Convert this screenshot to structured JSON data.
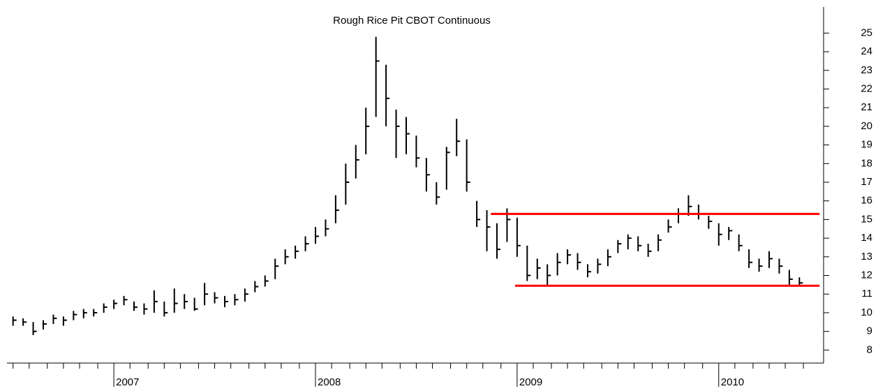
{
  "chart_data": {
    "type": "hlc",
    "title": "Rough Rice Pit CBOT Continuous",
    "color": "#000000",
    "x": [
      2006.5,
      2006.55,
      2006.6,
      2006.65,
      2006.7,
      2006.75,
      2006.8,
      2006.85,
      2006.9,
      2006.95,
      2007.0,
      2007.05,
      2007.1,
      2007.15,
      2007.2,
      2007.25,
      2007.3,
      2007.35,
      2007.4,
      2007.45,
      2007.5,
      2007.55,
      2007.6,
      2007.65,
      2007.7,
      2007.75,
      2007.8,
      2007.85,
      2007.9,
      2007.95,
      2008.0,
      2008.05,
      2008.1,
      2008.15,
      2008.2,
      2008.25,
      2008.3,
      2008.35,
      2008.4,
      2008.45,
      2008.5,
      2008.55,
      2008.6,
      2008.65,
      2008.7,
      2008.75,
      2008.8,
      2008.85,
      2008.9,
      2008.95,
      2009.0,
      2009.05,
      2009.1,
      2009.15,
      2009.2,
      2009.25,
      2009.3,
      2009.35,
      2009.4,
      2009.45,
      2009.5,
      2009.55,
      2009.6,
      2009.65,
      2009.7,
      2009.75,
      2009.8,
      2009.85,
      2009.9,
      2009.95,
      2010.0,
      2010.05,
      2010.1,
      2010.15,
      2010.2,
      2010.25,
      2010.3,
      2010.35,
      2010.4
    ],
    "high": [
      9.8,
      9.7,
      9.5,
      9.6,
      9.9,
      9.8,
      10.1,
      10.2,
      10.2,
      10.5,
      10.7,
      10.9,
      10.6,
      10.5,
      11.2,
      10.6,
      11.3,
      11.0,
      10.8,
      11.6,
      11.1,
      10.9,
      11.0,
      11.3,
      11.7,
      12.0,
      12.9,
      13.4,
      13.6,
      14.1,
      14.6,
      15.0,
      16.3,
      18.0,
      19.0,
      21.0,
      24.8,
      23.3,
      20.9,
      20.5,
      19.5,
      18.3,
      17.0,
      18.9,
      20.4,
      19.3,
      16.0,
      15.5,
      14.8,
      15.6,
      15.1,
      13.6,
      12.9,
      12.6,
      13.2,
      13.4,
      13.2,
      12.6,
      12.9,
      13.4,
      13.9,
      14.2,
      14.1,
      13.7,
      14.2,
      15.0,
      15.6,
      16.3,
      15.8,
      15.2,
      14.8,
      14.6,
      14.2,
      13.4,
      12.9,
      13.3,
      12.9,
      12.3,
      11.9
    ],
    "low": [
      9.3,
      9.3,
      8.8,
      9.1,
      9.4,
      9.3,
      9.6,
      9.7,
      9.8,
      10.0,
      10.2,
      10.4,
      10.1,
      9.9,
      10.0,
      9.8,
      10.0,
      10.2,
      10.1,
      10.4,
      10.5,
      10.3,
      10.4,
      10.6,
      11.1,
      11.4,
      11.8,
      12.6,
      12.9,
      13.3,
      13.7,
      14.1,
      14.8,
      15.8,
      17.2,
      18.5,
      20.5,
      20.0,
      18.3,
      18.5,
      17.8,
      16.5,
      15.8,
      16.6,
      18.4,
      16.5,
      14.6,
      13.3,
      12.9,
      13.8,
      13.0,
      11.7,
      11.8,
      11.5,
      12.0,
      12.6,
      12.3,
      11.9,
      12.1,
      12.5,
      13.2,
      13.4,
      13.3,
      13.0,
      13.3,
      14.3,
      14.8,
      15.2,
      15.0,
      14.5,
      13.6,
      13.9,
      13.3,
      12.4,
      12.2,
      12.4,
      12.1,
      11.5,
      11.4
    ],
    "close": [
      9.6,
      9.5,
      9.0,
      9.4,
      9.7,
      9.6,
      9.9,
      10.0,
      10.0,
      10.3,
      10.5,
      10.7,
      10.3,
      10.2,
      10.6,
      10.0,
      10.5,
      10.6,
      10.2,
      11.0,
      10.8,
      10.6,
      10.7,
      11.0,
      11.4,
      11.7,
      12.5,
      13.0,
      13.3,
      13.7,
      14.1,
      14.5,
      15.5,
      17.0,
      18.2,
      20.0,
      23.5,
      21.5,
      20.0,
      19.6,
      18.3,
      17.4,
      16.2,
      18.6,
      19.2,
      17.0,
      15.0,
      14.6,
      13.4,
      15.0,
      13.6,
      12.0,
      12.4,
      12.0,
      12.7,
      13.1,
      12.7,
      12.2,
      12.6,
      13.0,
      13.7,
      14.0,
      13.6,
      13.3,
      13.9,
      14.6,
      15.3,
      15.7,
      15.3,
      14.9,
      14.2,
      14.4,
      13.6,
      12.7,
      12.5,
      12.9,
      12.5,
      11.8,
      11.6
    ],
    "xlim": [
      2006.47,
      2010.52
    ],
    "xticks": [
      {
        "value": 2007,
        "label": "2007"
      },
      {
        "value": 2008,
        "label": "2008"
      },
      {
        "value": 2009,
        "label": "2009"
      },
      {
        "value": 2010,
        "label": "2010"
      }
    ],
    "xminorticks": [
      2006.5,
      2006.58,
      2006.67,
      2006.75,
      2006.83,
      2006.92,
      2007.08,
      2007.17,
      2007.25,
      2007.33,
      2007.42,
      2007.5,
      2007.58,
      2007.67,
      2007.75,
      2007.83,
      2007.92,
      2008.08,
      2008.17,
      2008.25,
      2008.33,
      2008.42,
      2008.5,
      2008.58,
      2008.67,
      2008.75,
      2008.83,
      2008.92,
      2009.08,
      2009.17,
      2009.25,
      2009.33,
      2009.42,
      2009.5,
      2009.58,
      2009.67,
      2009.75,
      2009.83,
      2009.92,
      2010.08,
      2010.17,
      2010.25,
      2010.33,
      2010.42
    ],
    "ylim": [
      7.3,
      26.4
    ],
    "yticks": [
      8,
      9,
      10,
      11,
      12,
      13,
      14,
      15,
      16,
      17,
      18,
      19,
      20,
      21,
      22,
      23,
      24,
      25
    ],
    "y_axis_side": "right",
    "levels": [
      {
        "y": 15.3,
        "x": [
          2008.87,
          2010.5
        ]
      },
      {
        "y": 11.45,
        "x": [
          2008.99,
          2010.5
        ]
      }
    ],
    "level_color": "#ff0000"
  }
}
